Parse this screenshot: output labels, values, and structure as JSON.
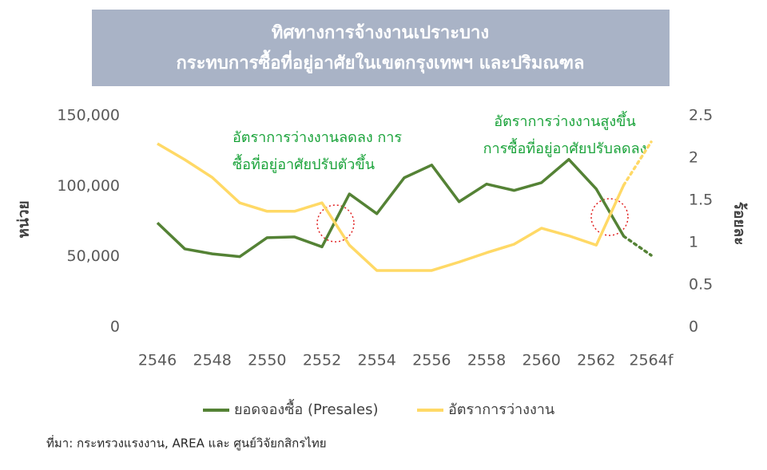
{
  "chart_data": {
    "type": "line",
    "title": [
      "ทิศทางการจ้างงานเปราะบาง",
      "กระทบการซื้อที่อยู่อาศัยในเขตกรุงเทพฯ และปริมณฑล"
    ],
    "y_label": "หน่วย",
    "y2_label": "ร้อยละ",
    "annotations": [
      [
        "อัตราการว่างงานลดลง การ",
        "ซื้อที่อยู่อาศัยปรับตัวขึ้น"
      ],
      [
        "อัตราการว่างงานสูงขึ้น",
        "การซื้อที่อยู่อาศัยปรับลดลง"
      ]
    ],
    "source": "ที่มา: กระทรวงแรงงาน, AREA และ ศูนย์วิจัยกสิกรไทย",
    "categories": [
      "2546",
      null,
      "2548",
      null,
      "2550",
      null,
      "2552",
      null,
      "2554",
      null,
      "2556",
      null,
      "2558",
      null,
      "2560",
      null,
      "2562",
      null,
      "2564f"
    ],
    "ylim": [
      0,
      150000
    ],
    "yticks": [
      0,
      {
        "value": 50000,
        "label": "50,000"
      },
      {
        "value": 100000,
        "label": "100,000"
      },
      {
        "value": 150000,
        "label": "150,000"
      }
    ],
    "y2lim": [
      0,
      2.5
    ],
    "y2ticks": [
      0,
      0.5,
      1,
      1.5,
      2,
      2.5
    ],
    "grid": false,
    "legend": "bottom",
    "series": [
      {
        "name": "ยอดจองซื้อ (Presales)",
        "color": "#548235",
        "dotted_from": 17,
        "values": [
          74000,
          55500,
          52000,
          50000,
          63500,
          64000,
          57000,
          94500,
          80500,
          106000,
          115000,
          89000,
          101500,
          97000,
          102500,
          119000,
          98000,
          64500,
          51000
        ]
      },
      {
        "name": "อัตราการว่างงาน",
        "color": "#ffd966",
        "axis": "y2",
        "dotted_from": 17,
        "values": [
          2.17,
          1.98,
          1.77,
          1.47,
          1.37,
          1.37,
          1.47,
          0.97,
          0.67,
          0.67,
          0.67,
          0.77,
          0.88,
          0.98,
          1.17,
          1.08,
          0.97,
          1.68,
          2.19
        ]
      }
    ]
  }
}
